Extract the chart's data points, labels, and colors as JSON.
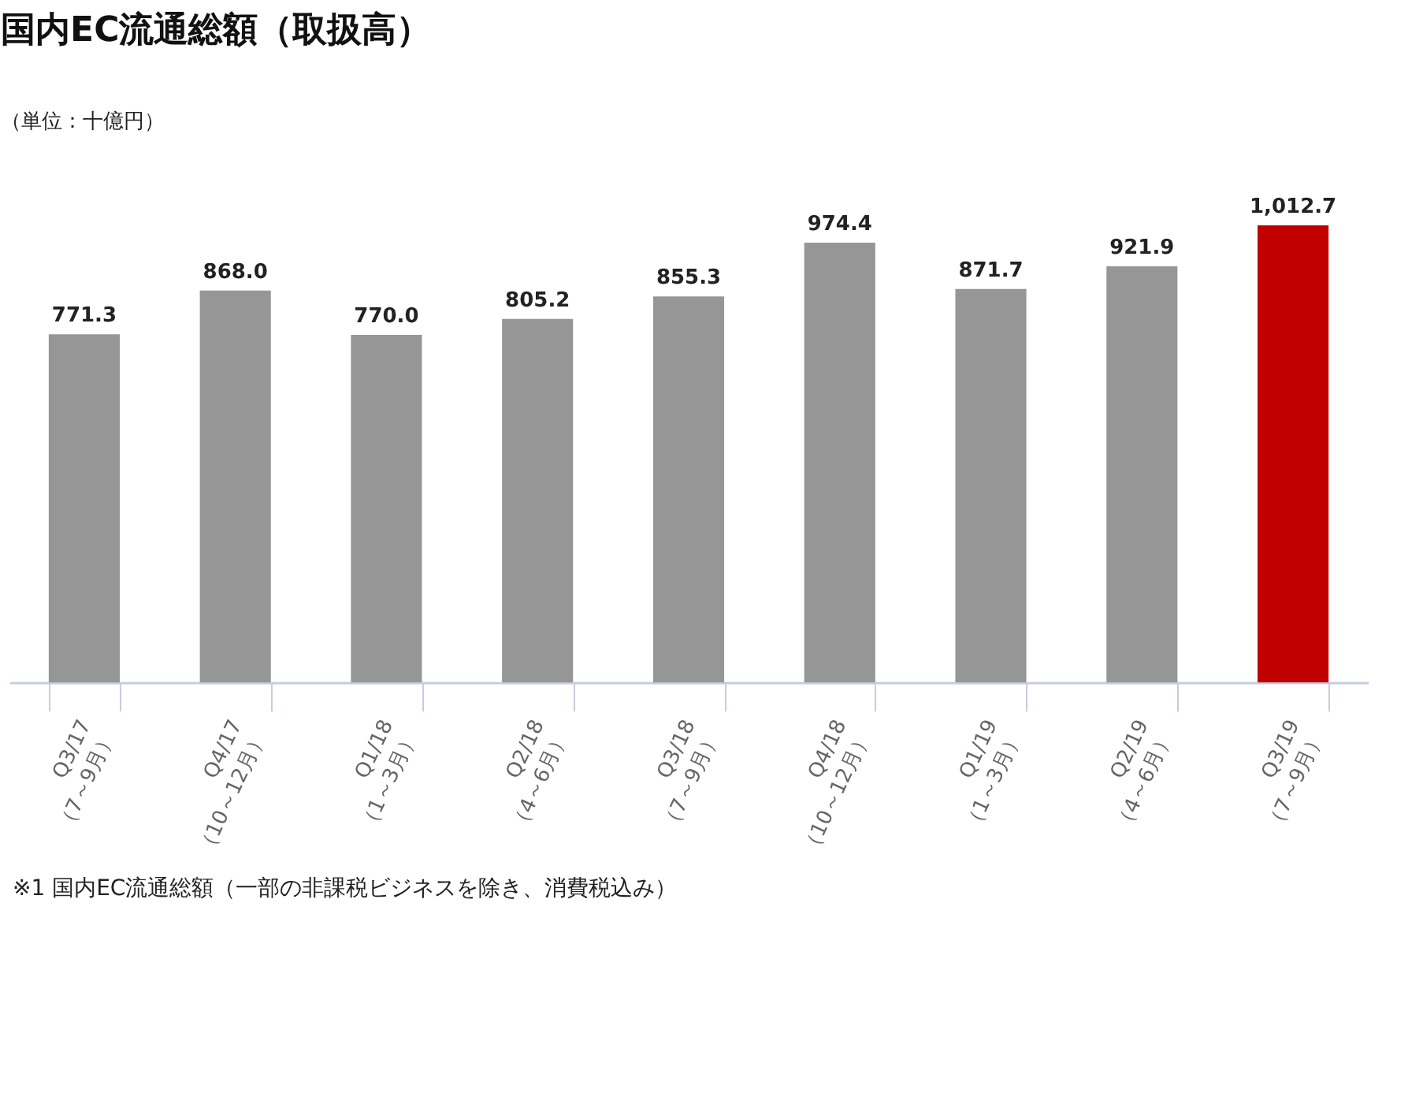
{
  "chart_data": {
    "type": "bar",
    "title": "国内EC流通総額（取扱高）",
    "subtitle": "（単位：十億円）",
    "categories": [
      "Q3/17\n（7～9月）",
      "Q4/17\n（10～12月）",
      "Q1/18\n（1～3月）",
      "Q2/18\n（4～6月）",
      "Q3/18\n（7～9月）",
      "Q4/18\n（10～12月）",
      "Q1/19\n（1～3月）",
      "Q2/19\n（4～6月）",
      "Q3/19\n（7～9月）"
    ],
    "values": [
      771.3,
      868.0,
      770.0,
      805.2,
      855.3,
      974.4,
      871.7,
      921.9,
      1012.7
    ],
    "colors": [
      "#969696",
      "#969696",
      "#969696",
      "#969696",
      "#969696",
      "#969696",
      "#969696",
      "#969696",
      "#c00000"
    ],
    "value_labels": [
      "771.3",
      "868.0",
      "770.0",
      "805.2",
      "855.3",
      "974.4",
      "871.7",
      "921.9",
      "1,012.7"
    ],
    "annotations": [
      "※1 国内EC流通総額（一部の非課税ビジネスを除き、消費税込み）"
    ]
  }
}
